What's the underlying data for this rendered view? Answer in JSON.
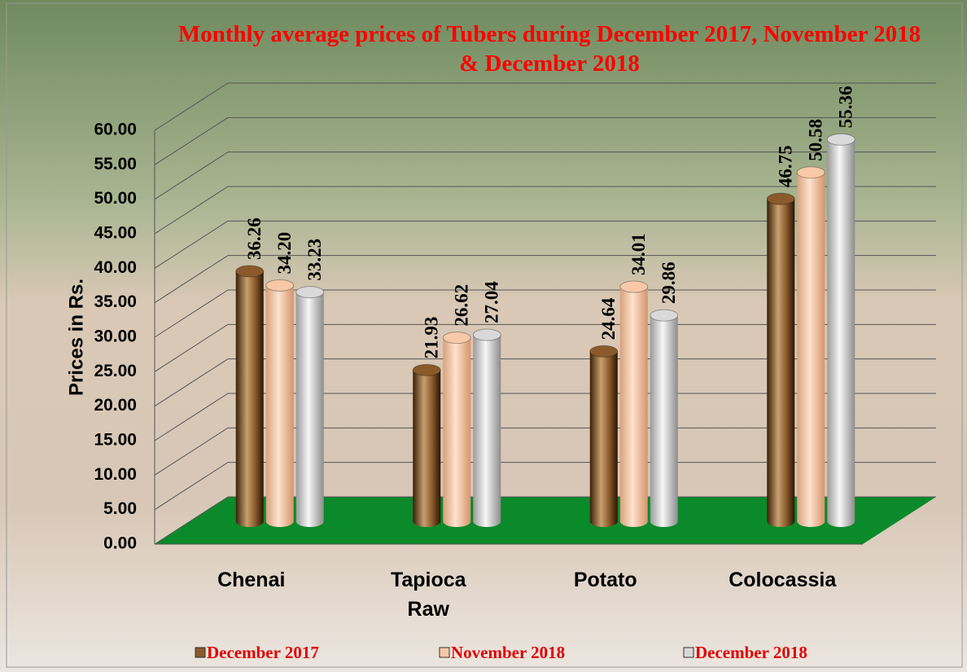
{
  "chart_data": {
    "type": "bar",
    "title": "Monthly average prices of Tubers during December 2017, November 2018 & December 2018",
    "y_label": "Prices in Rs.",
    "categories": [
      "Chenai",
      "Tapioca Raw",
      "Potato",
      "Colocassia"
    ],
    "series": [
      {
        "name": "December 2017",
        "color": "#8a5a2b",
        "values": [
          36.26,
          21.93,
          24.64,
          46.75
        ],
        "value_labels": [
          "36.26",
          "21.93",
          "24.64",
          "46.75"
        ]
      },
      {
        "name": "November  2018",
        "color": "#f7c9a8",
        "values": [
          34.2,
          26.62,
          34.01,
          50.58
        ],
        "value_labels": [
          "34.20",
          "26.62",
          "34.01",
          "50.58"
        ]
      },
      {
        "name": "December 2018",
        "color": "#d9d9d9",
        "values": [
          33.23,
          27.04,
          29.86,
          55.36
        ],
        "value_labels": [
          "33.23",
          "27.04",
          "29.86",
          "55.36"
        ]
      }
    ],
    "ylim": [
      0,
      60
    ],
    "yticks": [
      {
        "value": 0,
        "label": "0.00"
      },
      {
        "value": 5,
        "label": "5.00"
      },
      {
        "value": 10,
        "label": "10.00"
      },
      {
        "value": 15,
        "label": "15.00"
      },
      {
        "value": 20,
        "label": "20.00"
      },
      {
        "value": 25,
        "label": "25.00"
      },
      {
        "value": 30,
        "label": "30.00"
      },
      {
        "value": 35,
        "label": "35.00"
      },
      {
        "value": 40,
        "label": "40.00"
      },
      {
        "value": 45,
        "label": "45.00"
      },
      {
        "value": 50,
        "label": "50.00"
      },
      {
        "value": 55,
        "label": "55.00"
      },
      {
        "value": 60,
        "label": "60.00"
      }
    ],
    "grid": true,
    "floor_color": "#0a8a2a",
    "legend": "bottom"
  }
}
